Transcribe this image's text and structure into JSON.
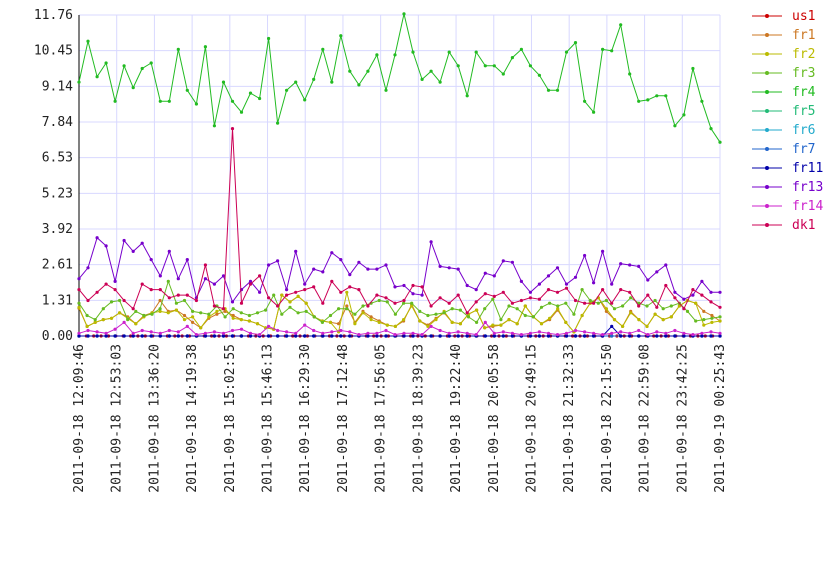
{
  "chart_data": {
    "type": "line",
    "title": "",
    "xlabel": "",
    "ylabel": "",
    "ylim": [
      0,
      11.76
    ],
    "y_ticks": [
      "0.00",
      "1.31",
      "2.61",
      "3.92",
      "5.23",
      "6.53",
      "7.84",
      "9.14",
      "10.45",
      "11.76"
    ],
    "x_tick_labels": [
      "2011-09-18 12:09:46",
      "2011-09-18 12:53:03",
      "2011-09-18 13:36:20",
      "2011-09-18 14:19:38",
      "2011-09-18 15:02:55",
      "2011-09-18 15:46:13",
      "2011-09-18 16:29:30",
      "2011-09-18 17:12:48",
      "2011-09-18 17:56:05",
      "2011-09-18 18:39:23",
      "2011-09-18 19:22:40",
      "2011-09-18 20:05:58",
      "2011-09-18 20:49:15",
      "2011-09-18 21:32:33",
      "2011-09-18 22:15:50",
      "2011-09-18 22:59:08",
      "2011-09-18 23:42:25",
      "2011-09-19 00:25:43"
    ],
    "grid": true,
    "legend_position": "right",
    "series": [
      {
        "name": "us1",
        "color": "#cc0000",
        "values": [
          0,
          0,
          0,
          0,
          0,
          0,
          0,
          0,
          0,
          0,
          0,
          0,
          0,
          0,
          0,
          0,
          0,
          0,
          0,
          0,
          0,
          0,
          0,
          0,
          0,
          0,
          0,
          0,
          0,
          0,
          0,
          0,
          0,
          0,
          0,
          0,
          0,
          0,
          0,
          0,
          0,
          0,
          0,
          0,
          0,
          0,
          0,
          0,
          0,
          0,
          0,
          0,
          0,
          0,
          0,
          0,
          0,
          0,
          0,
          0,
          0,
          0,
          0,
          0,
          0,
          0,
          0,
          0,
          0,
          0,
          0,
          0,
          0,
          0,
          0,
          0,
          0,
          0,
          0,
          0,
          0,
          0,
          0,
          0,
          0,
          0,
          0,
          0
        ]
      },
      {
        "name": "fr1",
        "color": "#cc7722",
        "values": [
          1.02,
          0.35,
          0.5,
          0.6,
          0.65,
          0.85,
          0.7,
          0.45,
          0.75,
          0.85,
          1.3,
          0.9,
          0.95,
          0.75,
          0.5,
          0.3,
          0.65,
          0.8,
          0.9,
          0.75,
          0.6,
          0.55,
          0.45,
          0.3,
          0.25,
          1.5,
          1.25,
          1.45,
          1.2,
          0.7,
          0.55,
          0.5,
          0.45,
          1.1,
          0.5,
          0.9,
          0.7,
          0.55,
          0.4,
          0.35,
          0.55,
          1.15,
          0.55,
          0.4,
          0.65,
          0.85,
          0.5,
          0.45,
          0.8,
          0.95,
          0.3,
          0.35,
          0.4,
          0.6,
          0.45,
          1.1,
          0.7,
          0.45,
          0.6,
          0.95,
          0.5,
          0.15,
          0.75,
          1.2,
          1.4,
          0.9,
          0.6,
          0.35,
          0.9,
          0.6,
          0.35,
          0.8,
          0.6,
          0.7,
          1.1,
          1.3,
          1.2,
          0.9,
          0.75,
          0.55
        ]
      },
      {
        "name": "fr2",
        "color": "#bbbb00",
        "values": [
          1.05,
          0.35,
          0.5,
          0.6,
          0.65,
          0.85,
          0.65,
          0.45,
          0.7,
          0.85,
          0.9,
          0.85,
          0.95,
          0.6,
          0.7,
          0.3,
          0.7,
          0.9,
          1.0,
          0.65,
          0.6,
          0.55,
          0.45,
          0.3,
          0.25,
          1.5,
          1.25,
          1.45,
          1.2,
          0.7,
          0.55,
          0.5,
          0.15,
          1.6,
          0.45,
          0.85,
          0.6,
          0.5,
          0.4,
          0.35,
          0.6,
          1.1,
          0.55,
          0.35,
          0.6,
          0.9,
          0.5,
          0.45,
          0.8,
          0.95,
          0.3,
          0.4,
          0.4,
          0.6,
          0.45,
          1.1,
          0.7,
          0.45,
          0.65,
          1.0,
          0.5,
          0.15,
          0.75,
          1.2,
          1.4,
          1.0,
          0.6,
          0.35,
          0.85,
          0.6,
          0.35,
          0.8,
          0.6,
          0.7,
          1.1,
          1.3,
          1.2,
          0.4,
          0.5,
          0.55
        ]
      },
      {
        "name": "fr3",
        "color": "#66bb22",
        "values": [
          1.2,
          0.75,
          0.6,
          1.0,
          1.25,
          1.3,
          0.6,
          0.9,
          0.75,
          0.8,
          1.0,
          2.0,
          1.2,
          1.3,
          0.9,
          0.85,
          0.8,
          1.1,
          0.7,
          1.0,
          0.85,
          0.75,
          0.85,
          0.95,
          1.5,
          0.8,
          1.05,
          0.85,
          0.9,
          0.7,
          0.5,
          0.75,
          1.0,
          1.0,
          0.8,
          1.1,
          1.2,
          1.3,
          1.25,
          0.8,
          1.2,
          1.2,
          0.9,
          0.75,
          0.8,
          0.85,
          1.0,
          0.95,
          0.7,
          0.5,
          1.0,
          1.35,
          0.6,
          1.1,
          1.0,
          0.75,
          0.7,
          1.05,
          1.2,
          1.1,
          1.2,
          0.8,
          1.7,
          1.3,
          1.2,
          1.3,
          1.0,
          1.1,
          1.4,
          1.2,
          1.1,
          1.3,
          1.0,
          1.1,
          1.2,
          0.9,
          0.55,
          0.6,
          0.65,
          0.7
        ]
      },
      {
        "name": "fr4",
        "color": "#22bb22",
        "values": [
          9.3,
          10.8,
          9.5,
          10.0,
          8.6,
          9.9,
          9.1,
          9.8,
          10.0,
          8.6,
          8.6,
          10.5,
          9.0,
          8.5,
          10.6,
          7.7,
          9.3,
          8.6,
          8.2,
          8.9,
          8.7,
          10.9,
          7.8,
          9.0,
          9.3,
          8.65,
          9.4,
          10.5,
          9.3,
          11.0,
          9.7,
          9.2,
          9.7,
          10.3,
          9.0,
          10.3,
          11.8,
          10.4,
          9.4,
          9.7,
          9.3,
          10.4,
          9.9,
          8.8,
          10.4,
          9.9,
          9.9,
          9.6,
          10.2,
          10.5,
          9.9,
          9.55,
          9.0,
          9.0,
          10.4,
          10.75,
          8.6,
          8.2,
          10.5,
          10.45,
          11.4,
          9.6,
          8.6,
          8.65,
          8.8,
          8.8,
          7.7,
          8.1,
          9.8,
          8.6,
          7.6,
          7.1
        ]
      },
      {
        "name": "fr5",
        "color": "#22bb77",
        "values": [
          0,
          0,
          0,
          0,
          0,
          0,
          0,
          0,
          0,
          0,
          0,
          0,
          0,
          0,
          0,
          0,
          0,
          0,
          0,
          0,
          0,
          0,
          0,
          0,
          0,
          0,
          0,
          0,
          0,
          0,
          0,
          0,
          0,
          0,
          0,
          0,
          0,
          0,
          0,
          0,
          0,
          0,
          0,
          0,
          0,
          0,
          0,
          0,
          0,
          0,
          0,
          0,
          0,
          0,
          0,
          0,
          0,
          0,
          0,
          0,
          0,
          0,
          0,
          0,
          0,
          0,
          0,
          0,
          0,
          0,
          0,
          0
        ]
      },
      {
        "name": "fr6",
        "color": "#22aacc",
        "values": [
          0,
          0,
          0,
          0,
          0,
          0,
          0,
          0,
          0,
          0,
          0,
          0,
          0,
          0,
          0,
          0,
          0,
          0,
          0,
          0,
          0,
          0,
          0,
          0,
          0,
          0,
          0,
          0,
          0,
          0,
          0,
          0,
          0,
          0,
          0,
          0,
          0,
          0,
          0,
          0,
          0,
          0,
          0,
          0,
          0,
          0,
          0,
          0,
          0,
          0,
          0,
          0,
          0,
          0,
          0,
          0,
          0,
          0,
          0,
          0,
          0,
          0,
          0,
          0,
          0,
          0,
          0,
          0,
          0,
          0,
          0,
          0
        ]
      },
      {
        "name": "fr7",
        "color": "#2266cc",
        "values": [
          0,
          0,
          0,
          0,
          0,
          0,
          0,
          0,
          0,
          0,
          0,
          0,
          0,
          0,
          0,
          0,
          0,
          0,
          0,
          0,
          0,
          0,
          0,
          0,
          0,
          0,
          0,
          0,
          0,
          0,
          0,
          0,
          0,
          0,
          0,
          0,
          0,
          0,
          0,
          0,
          0,
          0,
          0,
          0,
          0,
          0,
          0,
          0,
          0,
          0,
          0,
          0,
          0,
          0,
          0,
          0,
          0,
          0,
          0,
          0,
          0,
          0,
          0,
          0,
          0,
          0,
          0,
          0,
          0,
          0,
          0,
          0
        ]
      },
      {
        "name": "fr11",
        "color": "#0000aa",
        "values": [
          0,
          0,
          0,
          0,
          0,
          0,
          0,
          0,
          0,
          0,
          0,
          0,
          0,
          0,
          0,
          0,
          0,
          0,
          0,
          0,
          0,
          0,
          0,
          0,
          0,
          0,
          0,
          0,
          0,
          0,
          0,
          0,
          0,
          0,
          0,
          0,
          0,
          0,
          0,
          0,
          0,
          0,
          0,
          0,
          0,
          0,
          0,
          0,
          0,
          0,
          0,
          0,
          0,
          0,
          0,
          0,
          0,
          0,
          0,
          0.35,
          0,
          0,
          0,
          0,
          0,
          0,
          0,
          0,
          0,
          0,
          0,
          0
        ]
      },
      {
        "name": "fr13",
        "color": "#7700cc",
        "values": [
          2.1,
          2.5,
          3.6,
          3.3,
          2.0,
          3.5,
          3.1,
          3.4,
          2.8,
          2.2,
          3.1,
          2.1,
          2.8,
          1.4,
          2.1,
          1.9,
          2.2,
          1.25,
          1.7,
          2.0,
          1.6,
          2.6,
          2.75,
          1.7,
          3.1,
          1.9,
          2.45,
          2.35,
          3.05,
          2.8,
          2.25,
          2.7,
          2.45,
          2.45,
          2.6,
          1.8,
          1.85,
          1.55,
          1.5,
          3.45,
          2.55,
          2.5,
          2.45,
          1.85,
          1.7,
          2.3,
          2.2,
          2.75,
          2.7,
          2.0,
          1.6,
          1.9,
          2.2,
          2.5,
          1.9,
          2.15,
          2.95,
          1.95,
          3.1,
          1.9,
          2.65,
          2.6,
          2.55,
          2.05,
          2.35,
          2.6,
          1.6,
          1.35,
          1.5,
          2.0,
          1.6,
          1.6
        ]
      },
      {
        "name": "fr14",
        "color": "#cc22cc",
        "values": [
          0.1,
          0.2,
          0.15,
          0.1,
          0.25,
          0.5,
          0.1,
          0.2,
          0.15,
          0.1,
          0.2,
          0.15,
          0.35,
          0.05,
          0.1,
          0.15,
          0.1,
          0.2,
          0.25,
          0.1,
          0.05,
          0.35,
          0.2,
          0.15,
          0.1,
          0.4,
          0.2,
          0.1,
          0.15,
          0.2,
          0.15,
          0.05,
          0.1,
          0.1,
          0.2,
          0.05,
          0.1,
          0.1,
          0.05,
          0.35,
          0.2,
          0.1,
          0.15,
          0.1,
          0.05,
          0.5,
          0.1,
          0.15,
          0.1,
          0.05,
          0.1,
          0.15,
          0.1,
          0.05,
          0.1,
          0.2,
          0.15,
          0.1,
          0.05,
          0.1,
          0.15,
          0.1,
          0.2,
          0.05,
          0.15,
          0.1,
          0.2,
          0.1,
          0.05,
          0.1,
          0.15,
          0.1
        ]
      },
      {
        "name": "dk1",
        "color": "#cc0055",
        "values": [
          1.7,
          1.3,
          1.6,
          1.9,
          1.7,
          1.3,
          1.0,
          1.9,
          1.7,
          1.7,
          1.4,
          1.5,
          1.5,
          1.3,
          2.6,
          1.1,
          1.0,
          7.6,
          1.2,
          1.9,
          2.2,
          1.4,
          1.1,
          1.5,
          1.6,
          1.7,
          1.8,
          1.2,
          2.0,
          1.6,
          1.8,
          1.7,
          1.1,
          1.5,
          1.4,
          1.2,
          1.3,
          1.85,
          1.8,
          1.1,
          1.4,
          1.2,
          1.5,
          0.85,
          1.25,
          1.55,
          1.45,
          1.6,
          1.2,
          1.3,
          1.4,
          1.35,
          1.7,
          1.6,
          1.75,
          1.3,
          1.2,
          1.2,
          1.7,
          1.2,
          1.7,
          1.6,
          1.1,
          1.5,
          1.05,
          1.85,
          1.4,
          1.0,
          1.7,
          1.5,
          1.25,
          1.05
        ]
      }
    ]
  }
}
